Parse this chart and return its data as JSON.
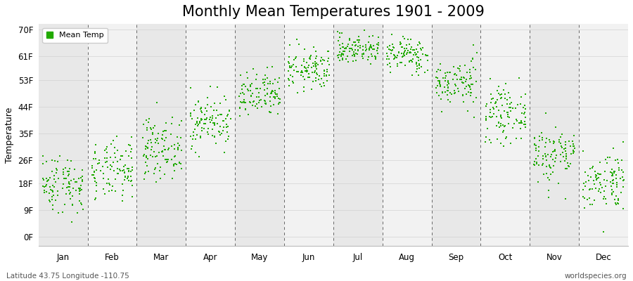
{
  "title": "Monthly Mean Temperatures 1901 - 2009",
  "ylabel": "Temperature",
  "xlabel_months": [
    "Jan",
    "Feb",
    "Mar",
    "Apr",
    "May",
    "Jun",
    "Jul",
    "Aug",
    "Sep",
    "Oct",
    "Nov",
    "Dec"
  ],
  "ytick_values": [
    0,
    9,
    18,
    26,
    35,
    44,
    53,
    61,
    70
  ],
  "ytick_labels": [
    "0F",
    "9F",
    "18F",
    "26F",
    "35F",
    "44F",
    "53F",
    "61F",
    "70F"
  ],
  "ylim": [
    -3,
    72
  ],
  "dot_color": "#22aa00",
  "dot_size": 3.5,
  "background_color": "#ffffff",
  "plot_bg_color_dark": "#e8e8e8",
  "plot_bg_color_light": "#f2f2f2",
  "title_fontsize": 15,
  "footer_left": "Latitude 43.75 Longitude -110.75",
  "footer_right": "worldspecies.org",
  "legend_label": "Mean Temp",
  "monthly_means": [
    18.0,
    22.0,
    30.0,
    39.0,
    47.5,
    56.5,
    63.5,
    61.5,
    52.0,
    41.5,
    28.0,
    19.0
  ],
  "monthly_stds": [
    5.0,
    5.0,
    5.0,
    4.5,
    4.0,
    3.5,
    2.5,
    3.0,
    4.0,
    4.5,
    5.0,
    5.0
  ],
  "n_years": 109,
  "random_seed": 42
}
